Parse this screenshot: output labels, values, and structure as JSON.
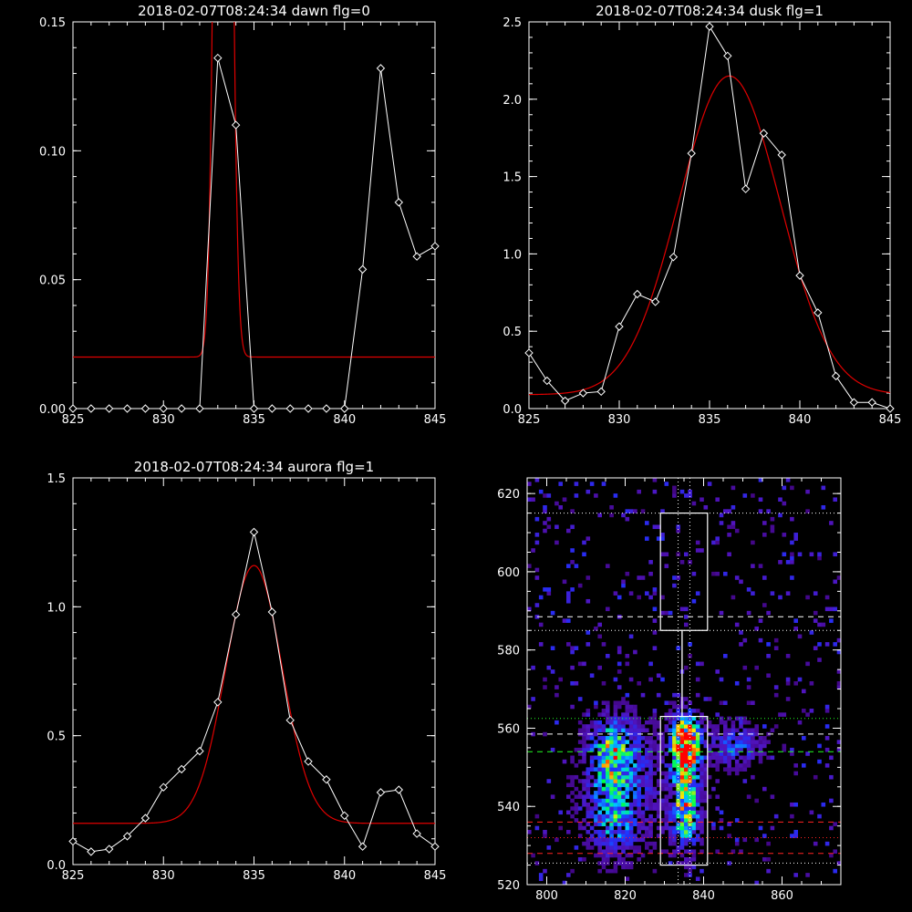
{
  "chart_data": [
    {
      "type": "line",
      "title": "2018-02-07T08:24:34 dawn flg=0",
      "xlim": [
        825,
        845
      ],
      "ylim": [
        0,
        0.15
      ],
      "xticks": [
        825,
        830,
        835,
        840,
        845
      ],
      "yticks": [
        0.0,
        0.05,
        0.1,
        0.15
      ],
      "ytick_labels": [
        "0.00",
        "0.05",
        "0.10",
        "0.15"
      ],
      "series": [
        {
          "style": "white-diamonds",
          "x": [
            825,
            826,
            827,
            828,
            829,
            830,
            831,
            832,
            833,
            834,
            835,
            836,
            837,
            838,
            839,
            840,
            841,
            842,
            843,
            844,
            845
          ],
          "y": [
            0,
            0,
            0,
            0,
            0,
            0,
            0,
            0,
            0.136,
            0.11,
            0,
            0,
            0,
            0,
            0,
            0,
            0.054,
            0.132,
            0.08,
            0.059,
            0.063
          ]
        },
        {
          "style": "red-fit",
          "model": "gaussian",
          "baseline": 0.02,
          "amplitude": 0.6,
          "center": 833.3,
          "sigma": 0.35
        }
      ]
    },
    {
      "type": "line",
      "title": "2018-02-07T08:24:34 dusk flg=1",
      "xlim": [
        825,
        845
      ],
      "ylim": [
        0,
        2.5
      ],
      "xticks": [
        825,
        830,
        835,
        840,
        845
      ],
      "yticks": [
        0.0,
        0.5,
        1.0,
        1.5,
        2.0,
        2.5
      ],
      "ytick_labels": [
        "0.0",
        "0.5",
        "1.0",
        "1.5",
        "2.0",
        "2.5"
      ],
      "series": [
        {
          "style": "white-diamonds",
          "x": [
            825,
            826,
            827,
            828,
            829,
            830,
            831,
            832,
            833,
            834,
            835,
            836,
            837,
            838,
            839,
            840,
            841,
            842,
            843,
            844,
            845
          ],
          "y": [
            0.36,
            0.18,
            0.05,
            0.1,
            0.11,
            0.53,
            0.74,
            0.69,
            0.98,
            1.65,
            2.47,
            2.28,
            1.42,
            1.78,
            1.64,
            0.86,
            0.62,
            0.21,
            0.04,
            0.04,
            0.0
          ]
        },
        {
          "style": "red-fit",
          "model": "gaussian",
          "baseline": 0.09,
          "amplitude": 2.06,
          "center": 836.1,
          "sigma": 2.8
        }
      ]
    },
    {
      "type": "line",
      "title": "2018-02-07T08:24:34 aurora flg=1",
      "xlim": [
        825,
        845
      ],
      "ylim": [
        0,
        1.5
      ],
      "xticks": [
        825,
        830,
        835,
        840,
        845
      ],
      "yticks": [
        0.0,
        0.5,
        1.0,
        1.5
      ],
      "ytick_labels": [
        "0.0",
        "0.5",
        "1.0",
        "1.5"
      ],
      "series": [
        {
          "style": "white-diamonds",
          "x": [
            825,
            826,
            827,
            828,
            829,
            830,
            831,
            832,
            833,
            834,
            835,
            836,
            837,
            838,
            839,
            840,
            841,
            842,
            843,
            844,
            845
          ],
          "y": [
            0.09,
            0.05,
            0.06,
            0.11,
            0.18,
            0.3,
            0.37,
            0.44,
            0.63,
            0.97,
            1.29,
            0.98,
            0.56,
            0.4,
            0.33,
            0.19,
            0.07,
            0.28,
            0.29,
            0.12,
            0.07
          ]
        },
        {
          "style": "red-fit",
          "model": "gaussian",
          "baseline": 0.16,
          "amplitude": 1.0,
          "center": 835.0,
          "sigma": 1.55
        }
      ]
    },
    {
      "type": "heatmap",
      "title": "",
      "xlim": [
        795,
        875
      ],
      "ylim": [
        520,
        624
      ],
      "xticks": [
        800,
        820,
        840,
        860
      ],
      "yticks": [
        520,
        540,
        560,
        580,
        600,
        620
      ],
      "hot_spots": [
        {
          "x": 835,
          "y": 556,
          "sx": 2.5,
          "sy": 5,
          "w": 1.0
        },
        {
          "x": 835,
          "y": 540,
          "sx": 2.5,
          "sy": 8,
          "w": 0.7
        },
        {
          "x": 816,
          "y": 553,
          "sx": 4,
          "sy": 6,
          "w": 0.55
        },
        {
          "x": 816,
          "y": 536,
          "sx": 4,
          "sy": 6,
          "w": 0.35
        },
        {
          "x": 848,
          "y": 555,
          "sx": 5,
          "sy": 4,
          "w": 0.35
        },
        {
          "x": 820,
          "y": 545,
          "sx": 8,
          "sy": 12,
          "w": 0.25
        }
      ],
      "boxes": [
        {
          "x0": 829,
          "x1": 841,
          "y0": 585,
          "y1": 615
        },
        {
          "x0": 829,
          "x1": 841,
          "y0": 525,
          "y1": 563
        },
        {
          "x0": 834.5,
          "x1": 834.5,
          "y0": 563,
          "y1": 585
        }
      ],
      "hlines": [
        {
          "y": 615,
          "color": "#ffffff",
          "dash": "1,3"
        },
        {
          "y": 588.5,
          "color": "#ffffff",
          "dash": "6,5"
        },
        {
          "y": 585,
          "color": "#ffffff",
          "dash": "1,3"
        },
        {
          "y": 562.5,
          "color": "#22ff22",
          "dash": "1,3"
        },
        {
          "y": 558.5,
          "color": "#ffffff",
          "dash": "6,5"
        },
        {
          "y": 554,
          "color": "#22ff22",
          "dash": "6,5"
        },
        {
          "y": 536,
          "color": "#ff2222",
          "dash": "6,5"
        },
        {
          "y": 532,
          "color": "#ff2222",
          "dash": "1,3"
        },
        {
          "y": 528,
          "color": "#ff2222",
          "dash": "6,5"
        },
        {
          "y": 525.5,
          "color": "#ffffff",
          "dash": "1,3"
        }
      ],
      "vlines": [
        {
          "x": 833.5,
          "color": "#ffffff",
          "dash": "1,3"
        },
        {
          "x": 836.5,
          "color": "#ffffff",
          "dash": "1,3"
        }
      ]
    }
  ]
}
